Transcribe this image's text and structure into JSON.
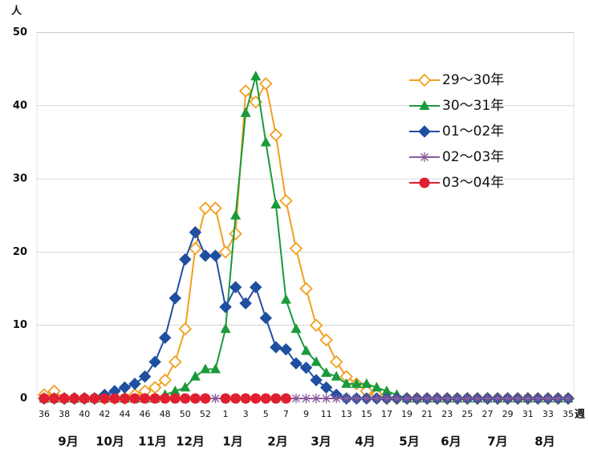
{
  "chart_data": {
    "type": "line",
    "y_label": "人",
    "x_label": "週",
    "categories": [
      36,
      null,
      38,
      null,
      40,
      null,
      42,
      null,
      44,
      null,
      46,
      null,
      48,
      null,
      50,
      null,
      52,
      null,
      1,
      null,
      3,
      null,
      5,
      null,
      7,
      null,
      9,
      null,
      11,
      null,
      13,
      null,
      15,
      null,
      17,
      null,
      19,
      null,
      21,
      null,
      23,
      null,
      25,
      null,
      27,
      null,
      29,
      null,
      31,
      null,
      33,
      null,
      35
    ],
    "months": [
      "9月",
      "10月",
      "11月",
      "12月",
      "1月",
      "2月",
      "3月",
      "4月",
      "5月",
      "6月",
      "7月",
      "8月"
    ],
    "ylim": [
      0,
      50
    ],
    "yticks": [
      0,
      10,
      20,
      30,
      40,
      50
    ],
    "grid": true,
    "legend": "upper right",
    "series": [
      {
        "name": "29～30年",
        "color": "#f0a020",
        "marker": "diamond-open",
        "values": [
          0.5,
          1,
          0,
          0,
          0,
          0,
          0,
          0,
          0,
          0.5,
          1,
          1.5,
          2.5,
          5,
          9.5,
          20.5,
          26,
          26,
          20,
          22.5,
          42,
          40.5,
          43,
          36,
          27,
          20.5,
          15,
          10,
          8,
          5,
          3,
          2,
          1,
          0.5,
          0,
          0,
          0,
          0,
          0,
          0,
          0,
          0,
          0,
          0,
          0,
          0,
          0,
          0,
          0,
          0,
          0,
          0,
          0
        ]
      },
      {
        "name": "30～31年",
        "color": "#1a9a3a",
        "marker": "triangle",
        "values": [
          0,
          0,
          0,
          0,
          0,
          0,
          0,
          0,
          0,
          0,
          0,
          0,
          0.5,
          1,
          1.5,
          3,
          4,
          4,
          9.5,
          25,
          39,
          44,
          35,
          26.5,
          13.5,
          9.5,
          6.5,
          5,
          3.5,
          3,
          2,
          2,
          2,
          1.5,
          1,
          0.5,
          0,
          0,
          0,
          0,
          0,
          0,
          0,
          0,
          0,
          0,
          0,
          0,
          0,
          0,
          0,
          0,
          0
        ]
      },
      {
        "name": "01～02年",
        "color": "#1f4fa0",
        "marker": "diamond",
        "values": [
          0,
          0,
          0,
          0,
          0,
          0,
          0.5,
          1,
          1.5,
          2,
          3,
          5,
          8.3,
          13.7,
          19,
          22.7,
          19.5,
          19.5,
          12.5,
          15.2,
          13,
          15.2,
          11,
          7,
          6.7,
          4.8,
          4.2,
          2.5,
          1.5,
          0.5,
          0,
          0,
          0,
          0,
          0,
          0,
          0,
          0,
          0,
          0,
          0,
          0,
          0,
          0,
          0,
          0,
          0,
          0,
          0,
          0,
          0,
          0,
          0
        ]
      },
      {
        "name": "02～03年",
        "color": "#8a5a9a",
        "marker": "asterisk",
        "values": [
          0,
          0,
          0,
          0,
          0,
          0,
          0,
          0,
          0,
          0,
          0,
          0,
          0,
          0,
          0,
          0,
          0,
          0,
          0,
          0,
          0,
          0,
          0,
          0,
          0,
          0,
          0,
          0,
          0,
          0,
          0,
          0,
          0,
          0,
          0,
          0,
          0,
          0,
          0,
          0,
          0,
          0,
          0,
          0,
          0,
          0,
          0,
          0,
          0,
          0,
          0,
          0,
          0
        ]
      },
      {
        "name": "03～04年",
        "color": "#e02030",
        "marker": "circle",
        "values": [
          0,
          0,
          0,
          0,
          0,
          0,
          0,
          0,
          0,
          0,
          0,
          0,
          0,
          0,
          0,
          0,
          0,
          null,
          0,
          0,
          0,
          0,
          0,
          0,
          0,
          null,
          null,
          null,
          null,
          null,
          null,
          null,
          null,
          null,
          null,
          null,
          null,
          null,
          null,
          null,
          null,
          null,
          null,
          null,
          null,
          null,
          null,
          null,
          null,
          null,
          null,
          null,
          null
        ]
      }
    ]
  }
}
